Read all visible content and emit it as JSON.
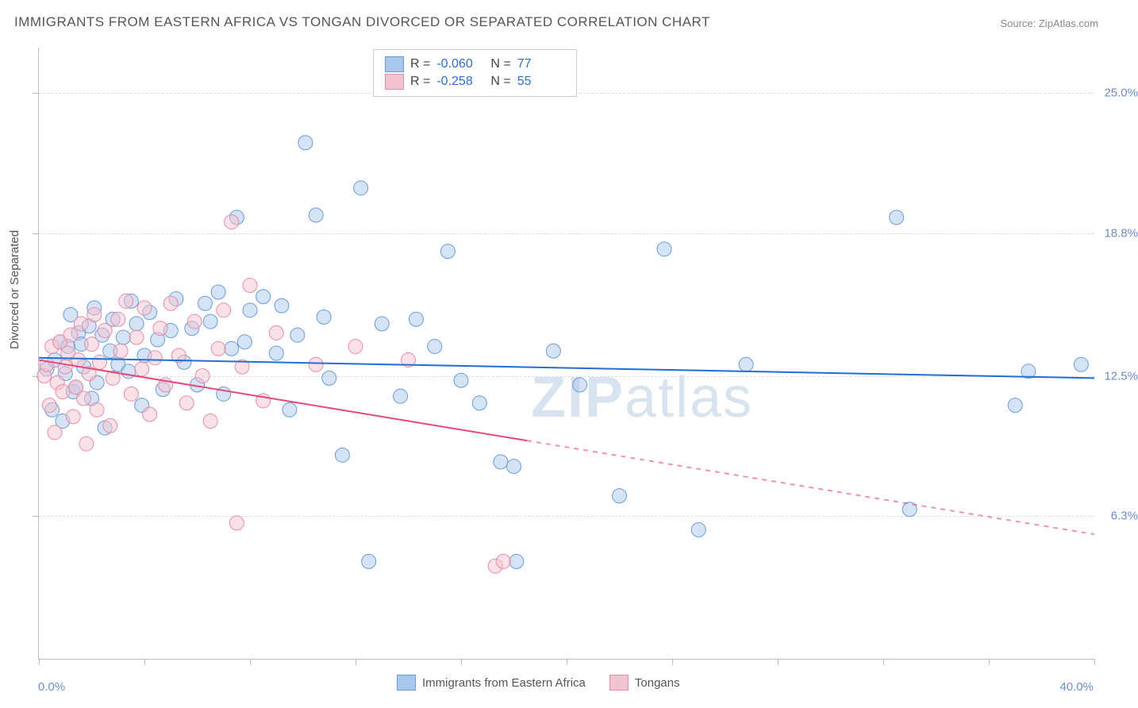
{
  "title": "IMMIGRANTS FROM EASTERN AFRICA VS TONGAN DIVORCED OR SEPARATED CORRELATION CHART",
  "source_label": "Source: ",
  "source_name": "ZipAtlas.com",
  "watermark_prefix": "ZIP",
  "watermark_suffix": "atlas",
  "ylabel": "Divorced or Separated",
  "chart": {
    "type": "scatter",
    "background_color": "#ffffff",
    "grid_color": "#dddddd",
    "axis_color": "#bbbbbb",
    "tick_label_color": "#6a8ec9",
    "xlim": [
      0,
      40
    ],
    "ylim": [
      0,
      27
    ],
    "x_tick_positions": [
      0,
      4,
      8,
      12,
      16,
      20,
      24,
      28,
      32,
      36,
      40
    ],
    "y_tick_positions": [
      6.3,
      12.5,
      18.8,
      25.0
    ],
    "y_tick_labels": [
      "6.3%",
      "12.5%",
      "18.8%",
      "25.0%"
    ],
    "x_min_label": "0.0%",
    "x_max_label": "40.0%",
    "marker_radius": 9,
    "marker_opacity": 0.5,
    "line_width": 2,
    "series": [
      {
        "name": "Immigrants from Eastern Africa",
        "fill_color": "#a9c7eb",
        "stroke_color": "#6a9bd8",
        "line_color": "#1f6fd6",
        "r": "-0.060",
        "n": "77",
        "regression": {
          "x0": 0,
          "y0": 13.3,
          "x1": 40,
          "y1": 12.4,
          "solid_until_x": 40
        },
        "points": [
          [
            0.3,
            12.8
          ],
          [
            0.5,
            11.0
          ],
          [
            0.6,
            13.2
          ],
          [
            0.8,
            14.0
          ],
          [
            0.9,
            10.5
          ],
          [
            1.0,
            12.6
          ],
          [
            1.1,
            13.8
          ],
          [
            1.2,
            15.2
          ],
          [
            1.3,
            11.8
          ],
          [
            1.4,
            12.0
          ],
          [
            1.5,
            14.4
          ],
          [
            1.6,
            13.9
          ],
          [
            1.7,
            12.9
          ],
          [
            1.9,
            14.7
          ],
          [
            2.0,
            11.5
          ],
          [
            2.1,
            15.5
          ],
          [
            2.2,
            12.2
          ],
          [
            2.4,
            14.3
          ],
          [
            2.5,
            10.2
          ],
          [
            2.7,
            13.6
          ],
          [
            2.8,
            15.0
          ],
          [
            3.0,
            13.0
          ],
          [
            3.2,
            14.2
          ],
          [
            3.4,
            12.7
          ],
          [
            3.5,
            15.8
          ],
          [
            3.7,
            14.8
          ],
          [
            3.9,
            11.2
          ],
          [
            4.0,
            13.4
          ],
          [
            4.2,
            15.3
          ],
          [
            4.5,
            14.1
          ],
          [
            4.7,
            11.9
          ],
          [
            5.0,
            14.5
          ],
          [
            5.2,
            15.9
          ],
          [
            5.5,
            13.1
          ],
          [
            5.8,
            14.6
          ],
          [
            6.0,
            12.1
          ],
          [
            6.3,
            15.7
          ],
          [
            6.5,
            14.9
          ],
          [
            6.8,
            16.2
          ],
          [
            7.0,
            11.7
          ],
          [
            7.3,
            13.7
          ],
          [
            7.5,
            19.5
          ],
          [
            7.8,
            14.0
          ],
          [
            8.0,
            15.4
          ],
          [
            8.5,
            16.0
          ],
          [
            9.0,
            13.5
          ],
          [
            9.2,
            15.6
          ],
          [
            9.5,
            11.0
          ],
          [
            9.8,
            14.3
          ],
          [
            10.1,
            22.8
          ],
          [
            10.5,
            19.6
          ],
          [
            10.8,
            15.1
          ],
          [
            11.0,
            12.4
          ],
          [
            11.5,
            9.0
          ],
          [
            12.2,
            20.8
          ],
          [
            12.5,
            4.3
          ],
          [
            13.0,
            14.8
          ],
          [
            13.7,
            11.6
          ],
          [
            14.3,
            15.0
          ],
          [
            15.0,
            13.8
          ],
          [
            15.5,
            18.0
          ],
          [
            16.0,
            12.3
          ],
          [
            16.7,
            11.3
          ],
          [
            17.5,
            8.7
          ],
          [
            18.0,
            8.5
          ],
          [
            18.1,
            4.3
          ],
          [
            19.5,
            13.6
          ],
          [
            20.5,
            12.1
          ],
          [
            22.0,
            7.2
          ],
          [
            23.7,
            18.1
          ],
          [
            25.0,
            5.7
          ],
          [
            26.8,
            13.0
          ],
          [
            32.5,
            19.5
          ],
          [
            33.0,
            6.6
          ],
          [
            37.0,
            11.2
          ],
          [
            37.5,
            12.7
          ],
          [
            39.5,
            13.0
          ]
        ]
      },
      {
        "name": "Tongans",
        "fill_color": "#f4c3d0",
        "stroke_color": "#e98ba6",
        "line_color": "#e34a7a",
        "r": "-0.258",
        "n": "55",
        "regression": {
          "x0": 0,
          "y0": 13.2,
          "x1": 40,
          "y1": 5.5,
          "solid_until_x": 18.5
        },
        "points": [
          [
            0.2,
            12.5
          ],
          [
            0.3,
            13.0
          ],
          [
            0.4,
            11.2
          ],
          [
            0.5,
            13.8
          ],
          [
            0.6,
            10.0
          ],
          [
            0.7,
            12.2
          ],
          [
            0.8,
            14.0
          ],
          [
            0.9,
            11.8
          ],
          [
            1.0,
            12.9
          ],
          [
            1.1,
            13.5
          ],
          [
            1.2,
            14.3
          ],
          [
            1.3,
            10.7
          ],
          [
            1.4,
            12.0
          ],
          [
            1.5,
            13.2
          ],
          [
            1.6,
            14.8
          ],
          [
            1.7,
            11.5
          ],
          [
            1.8,
            9.5
          ],
          [
            1.9,
            12.6
          ],
          [
            2.0,
            13.9
          ],
          [
            2.1,
            15.2
          ],
          [
            2.2,
            11.0
          ],
          [
            2.3,
            13.1
          ],
          [
            2.5,
            14.5
          ],
          [
            2.7,
            10.3
          ],
          [
            2.8,
            12.4
          ],
          [
            3.0,
            15.0
          ],
          [
            3.1,
            13.6
          ],
          [
            3.3,
            15.8
          ],
          [
            3.5,
            11.7
          ],
          [
            3.7,
            14.2
          ],
          [
            3.9,
            12.8
          ],
          [
            4.0,
            15.5
          ],
          [
            4.2,
            10.8
          ],
          [
            4.4,
            13.3
          ],
          [
            4.6,
            14.6
          ],
          [
            4.8,
            12.1
          ],
          [
            5.0,
            15.7
          ],
          [
            5.3,
            13.4
          ],
          [
            5.6,
            11.3
          ],
          [
            5.9,
            14.9
          ],
          [
            6.2,
            12.5
          ],
          [
            6.5,
            10.5
          ],
          [
            6.8,
            13.7
          ],
          [
            7.0,
            15.4
          ],
          [
            7.3,
            19.3
          ],
          [
            7.5,
            6.0
          ],
          [
            7.7,
            12.9
          ],
          [
            8.0,
            16.5
          ],
          [
            8.5,
            11.4
          ],
          [
            9.0,
            14.4
          ],
          [
            10.5,
            13.0
          ],
          [
            12.0,
            13.8
          ],
          [
            14.0,
            13.2
          ],
          [
            17.3,
            4.1
          ],
          [
            17.6,
            4.3
          ]
        ]
      }
    ]
  },
  "legend_top": {
    "r_label": "R =",
    "n_label": "N ="
  },
  "legend_bottom": {
    "series1_label": "Immigrants from Eastern Africa",
    "series2_label": "Tongans"
  }
}
